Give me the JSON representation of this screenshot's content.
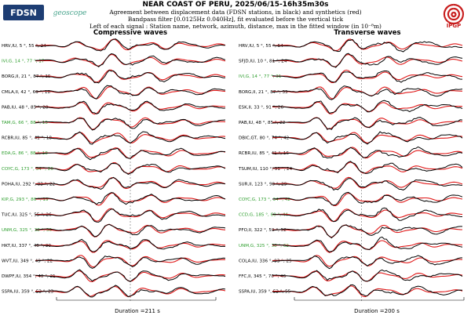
{
  "header": {
    "title": "NEAR COAST OF PERU, 2025/06/15-16h35m30s",
    "line1": "Agreement between displacement data (FDSN stations, in black) and synthetics (red)",
    "line2": "Bandpass filter [0.0125Hz 0.040Hz], fit evaluated before the vertical tick",
    "line3": "Left of each signal : Station name, network, azimuth, distance, max in the fitted window (in 10⁻⁸m)"
  },
  "logos": {
    "fdsn": "FDSN",
    "geoscope": "geoscope",
    "ipgp": "IPGP"
  },
  "colors": {
    "data": "#000000",
    "synthetic": "#e01818",
    "label_default": "#000000",
    "label_green": "#2e9e2e"
  },
  "chart_data": [
    {
      "type": "line",
      "title": "Compressive waves",
      "duration_label": "Duration =211 s",
      "series": [
        {
          "name": "data"
        },
        {
          "name": "synthetics"
        }
      ],
      "stations": [
        {
          "label": "HRV,IU, 5",
          "distance": "55",
          "max": "24",
          "green": false
        },
        {
          "label": "IVI,G, 14",
          "distance": "77",
          "max": "17",
          "green": true
        },
        {
          "label": "BORG,II, 21",
          "distance": "87",
          "max": "15",
          "green": false
        },
        {
          "label": "CMLA,II, 42",
          "distance": "69",
          "max": "18",
          "green": false
        },
        {
          "label": "PAB,IU, 48",
          "distance": "85",
          "max": "20",
          "green": false
        },
        {
          "label": "TAM,G, 66",
          "distance": "88",
          "max": "15",
          "green": true
        },
        {
          "label": "RCBR,IU, 85",
          "distance": "41",
          "max": "18",
          "green": false
        },
        {
          "label": "EDA,G, 86",
          "distance": "88",
          "max": "18",
          "green": true
        },
        {
          "label": "COYC,G, 173",
          "distance": "34",
          "max": "26",
          "green": true
        },
        {
          "label": "POHA,IU, 292",
          "distance": "83",
          "max": "22",
          "green": false
        },
        {
          "label": "KIP,G, 293",
          "distance": "86",
          "max": "19",
          "green": true
        },
        {
          "label": "TUC,IU, 325",
          "distance": "55",
          "max": "26",
          "green": false
        },
        {
          "label": "UNM,G, 325",
          "distance": "38",
          "max": "36",
          "green": true
        },
        {
          "label": "HKT,IU, 337",
          "distance": "46",
          "max": "29",
          "green": false
        },
        {
          "label": "WVT,IU, 349",
          "distance": "49",
          "max": "22",
          "green": false
        },
        {
          "label": "DWPF,IU, 354",
          "distance": "40",
          "max": "21",
          "green": false
        },
        {
          "label": "SSPA,IU, 359",
          "distance": "53",
          "max": "23",
          "green": false
        }
      ]
    },
    {
      "type": "line",
      "title": "Transverse waves",
      "duration_label": "Duration =200 s",
      "series": [
        {
          "name": "data"
        },
        {
          "name": "synthetics"
        }
      ],
      "stations": [
        {
          "label": "HRV,IU, 5",
          "distance": "55",
          "max": "54",
          "green": false
        },
        {
          "label": "SFJD,IU, 10",
          "distance": "81",
          "max": "24",
          "green": false
        },
        {
          "label": "IVI,G, 14",
          "distance": "77",
          "max": "31",
          "green": true
        },
        {
          "label": "BORG,II, 21",
          "distance": "87",
          "max": "33",
          "green": false
        },
        {
          "label": "ESK,II, 33",
          "distance": "91",
          "max": "26",
          "green": false
        },
        {
          "label": "PAB,IU, 48",
          "distance": "85",
          "max": "22",
          "green": false
        },
        {
          "label": "DBIC,GT, 80",
          "distance": "74",
          "max": "42",
          "green": false
        },
        {
          "label": "RCBR,IU, 85",
          "distance": "41",
          "max": "16",
          "green": false
        },
        {
          "label": "TSUM,IU, 110",
          "distance": "91",
          "max": "24",
          "green": false
        },
        {
          "label": "SUR,II, 123",
          "distance": "90",
          "max": "29",
          "green": false
        },
        {
          "label": "COYC,G, 173",
          "distance": "34",
          "max": "42",
          "green": true
        },
        {
          "label": "CCD,G, 185",
          "distance": "60",
          "max": "44",
          "green": true
        },
        {
          "label": "PFO,II, 322",
          "distance": "59",
          "max": "52",
          "green": false
        },
        {
          "label": "UNM,G, 325",
          "distance": "38",
          "max": "62",
          "green": true
        },
        {
          "label": "COLA,IU, 336",
          "distance": "93",
          "max": "25",
          "green": false
        },
        {
          "label": "FFC,II, 345",
          "distance": "70",
          "max": "46",
          "green": false
        },
        {
          "label": "SSPA,IU, 359",
          "distance": "53",
          "max": "55",
          "green": false
        }
      ]
    }
  ]
}
